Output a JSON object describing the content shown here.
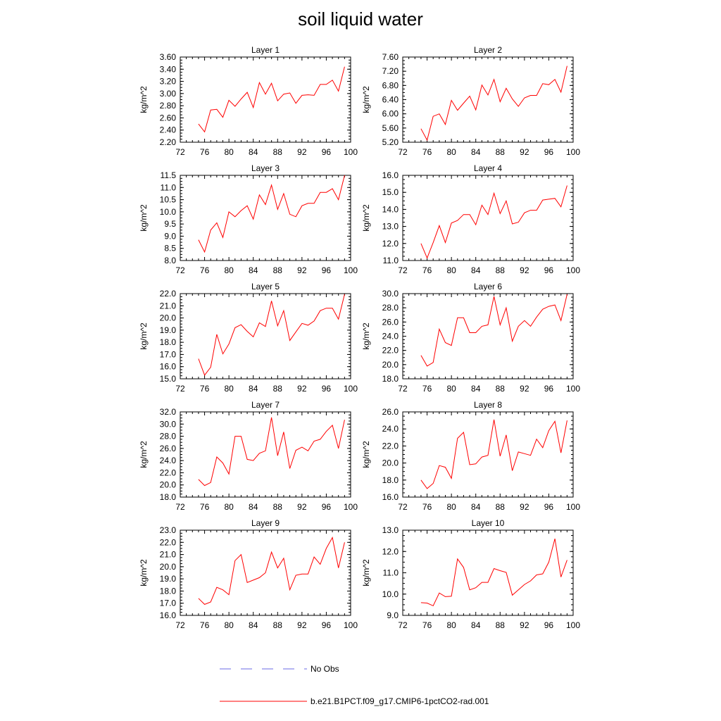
{
  "title": "soil liquid water",
  "colors": {
    "model": "#ff0000",
    "obs": "#6a6ae6",
    "axis": "#000000"
  },
  "legend": {
    "obs_label": "No Obs",
    "model_label": "b.e21.B1PCT.f09_g17.CMIP6-1pctCO2-rad.001"
  },
  "chart_data": [
    {
      "type": "line",
      "title": "Layer 1",
      "ylabel": "kg/m^2",
      "xlim": [
        72,
        100
      ],
      "xticks": [
        "72",
        "76",
        "80",
        "84",
        "88",
        "92",
        "96",
        "100"
      ],
      "ylim": [
        2.2,
        3.6
      ],
      "yticks": [
        "2.20",
        "2.40",
        "2.60",
        "2.80",
        "3.00",
        "3.20",
        "3.40",
        "3.60"
      ],
      "x": [
        75,
        76,
        77,
        78,
        79,
        80,
        81,
        82,
        83,
        84,
        85,
        86,
        87,
        88,
        89,
        90,
        91,
        92,
        93,
        94,
        95,
        96,
        97,
        98,
        99
      ],
      "series": [
        {
          "name": "b.e21.B1PCT.f09_g17.CMIP6-1pctCO2-rad.001",
          "values": [
            2.5,
            2.37,
            2.73,
            2.74,
            2.61,
            2.89,
            2.79,
            2.91,
            3.02,
            2.77,
            3.18,
            2.99,
            3.17,
            2.88,
            2.99,
            3.01,
            2.84,
            2.97,
            2.98,
            2.97,
            3.15,
            3.15,
            3.22,
            3.04,
            3.44
          ]
        }
      ]
    },
    {
      "type": "line",
      "title": "Layer 2",
      "ylabel": "kg/m^2",
      "xlim": [
        72,
        100
      ],
      "xticks": [
        "72",
        "76",
        "80",
        "84",
        "88",
        "92",
        "96",
        "100"
      ],
      "ylim": [
        5.2,
        7.6
      ],
      "yticks": [
        "5.20",
        "5.60",
        "6.00",
        "6.40",
        "6.80",
        "7.20",
        "7.60"
      ],
      "x": [
        75,
        76,
        77,
        78,
        79,
        80,
        81,
        82,
        83,
        84,
        85,
        86,
        87,
        88,
        89,
        90,
        91,
        92,
        93,
        94,
        95,
        96,
        97,
        98,
        99
      ],
      "series": [
        {
          "name": "b.e21.B1PCT.f09_g17.CMIP6-1pctCO2-rad.001",
          "values": [
            5.58,
            5.26,
            5.93,
            6.0,
            5.7,
            6.38,
            6.1,
            6.3,
            6.5,
            6.11,
            6.81,
            6.53,
            6.97,
            6.34,
            6.72,
            6.42,
            6.21,
            6.45,
            6.52,
            6.52,
            6.85,
            6.82,
            6.97,
            6.61,
            7.35
          ]
        }
      ]
    },
    {
      "type": "line",
      "title": "Layer 3",
      "ylabel": "kg/m^2",
      "xlim": [
        72,
        100
      ],
      "xticks": [
        "72",
        "76",
        "80",
        "84",
        "88",
        "92",
        "96",
        "100"
      ],
      "ylim": [
        8.0,
        11.5
      ],
      "yticks": [
        "8.0",
        "8.5",
        "9.0",
        "9.5",
        "10.0",
        "10.5",
        "11.0",
        "11.5"
      ],
      "x": [
        75,
        76,
        77,
        78,
        79,
        80,
        81,
        82,
        83,
        84,
        85,
        86,
        87,
        88,
        89,
        90,
        91,
        92,
        93,
        94,
        95,
        96,
        97,
        98,
        99
      ],
      "series": [
        {
          "name": "b.e21.B1PCT.f09_g17.CMIP6-1pctCO2-rad.001",
          "values": [
            8.85,
            8.35,
            9.25,
            9.55,
            8.95,
            10.0,
            9.8,
            10.05,
            10.25,
            9.7,
            10.7,
            10.3,
            11.1,
            10.1,
            10.75,
            9.9,
            9.8,
            10.25,
            10.35,
            10.35,
            10.8,
            10.8,
            10.95,
            10.5,
            11.5
          ]
        }
      ]
    },
    {
      "type": "line",
      "title": "Layer 4",
      "ylabel": "kg/m^2",
      "xlim": [
        72,
        100
      ],
      "xticks": [
        "72",
        "76",
        "80",
        "84",
        "88",
        "92",
        "96",
        "100"
      ],
      "ylim": [
        11.0,
        16.0
      ],
      "yticks": [
        "11.0",
        "12.0",
        "13.0",
        "14.0",
        "15.0",
        "16.0"
      ],
      "x": [
        75,
        76,
        77,
        78,
        79,
        80,
        81,
        82,
        83,
        84,
        85,
        86,
        87,
        88,
        89,
        90,
        91,
        92,
        93,
        94,
        95,
        96,
        97,
        98,
        99
      ],
      "series": [
        {
          "name": "b.e21.B1PCT.f09_g17.CMIP6-1pctCO2-rad.001",
          "values": [
            12.0,
            11.15,
            12.05,
            13.05,
            12.05,
            13.2,
            13.35,
            13.7,
            13.7,
            13.1,
            14.25,
            13.7,
            14.95,
            13.75,
            14.5,
            13.15,
            13.25,
            13.8,
            13.95,
            13.95,
            14.55,
            14.6,
            14.65,
            14.15,
            15.4
          ]
        }
      ]
    },
    {
      "type": "line",
      "title": "Layer 5",
      "ylabel": "kg/m^2",
      "xlim": [
        72,
        100
      ],
      "xticks": [
        "72",
        "76",
        "80",
        "84",
        "88",
        "92",
        "96",
        "100"
      ],
      "ylim": [
        15.0,
        22.0
      ],
      "yticks": [
        "15.0",
        "16.0",
        "17.0",
        "18.0",
        "19.0",
        "20.0",
        "21.0",
        "22.0"
      ],
      "x": [
        75,
        76,
        77,
        78,
        79,
        80,
        81,
        82,
        83,
        84,
        85,
        86,
        87,
        88,
        89,
        90,
        91,
        92,
        93,
        94,
        95,
        96,
        97,
        98,
        99
      ],
      "series": [
        {
          "name": "b.e21.B1PCT.f09_g17.CMIP6-1pctCO2-rad.001",
          "values": [
            16.65,
            15.3,
            15.95,
            18.65,
            17.05,
            17.85,
            19.2,
            19.45,
            18.9,
            18.45,
            19.6,
            19.3,
            21.4,
            19.35,
            20.6,
            18.15,
            18.85,
            19.55,
            19.4,
            19.75,
            20.6,
            20.8,
            20.8,
            19.9,
            21.95
          ]
        }
      ]
    },
    {
      "type": "line",
      "title": "Layer 6",
      "ylabel": "kg/m^2",
      "xlim": [
        72,
        100
      ],
      "xticks": [
        "72",
        "76",
        "80",
        "84",
        "88",
        "92",
        "96",
        "100"
      ],
      "ylim": [
        18.0,
        30.0
      ],
      "yticks": [
        "18.0",
        "20.0",
        "22.0",
        "24.0",
        "26.0",
        "28.0",
        "30.0"
      ],
      "x": [
        75,
        76,
        77,
        78,
        79,
        80,
        81,
        82,
        83,
        84,
        85,
        86,
        87,
        88,
        89,
        90,
        91,
        92,
        93,
        94,
        95,
        96,
        97,
        98,
        99
      ],
      "series": [
        {
          "name": "b.e21.B1PCT.f09_g17.CMIP6-1pctCO2-rad.001",
          "values": [
            21.3,
            19.8,
            20.3,
            25.0,
            23.1,
            22.7,
            26.6,
            26.6,
            24.5,
            24.5,
            25.4,
            25.6,
            29.6,
            25.6,
            28.0,
            23.3,
            25.4,
            26.2,
            25.4,
            26.7,
            27.8,
            28.2,
            28.4,
            26.2,
            29.9
          ]
        }
      ]
    },
    {
      "type": "line",
      "title": "Layer 7",
      "ylabel": "kg/m^2",
      "xlim": [
        72,
        100
      ],
      "xticks": [
        "72",
        "76",
        "80",
        "84",
        "88",
        "92",
        "96",
        "100"
      ],
      "ylim": [
        18.0,
        32.0
      ],
      "yticks": [
        "18.0",
        "20.0",
        "22.0",
        "24.0",
        "26.0",
        "28.0",
        "30.0",
        "32.0"
      ],
      "x": [
        75,
        76,
        77,
        78,
        79,
        80,
        81,
        82,
        83,
        84,
        85,
        86,
        87,
        88,
        89,
        90,
        91,
        92,
        93,
        94,
        95,
        96,
        97,
        98,
        99
      ],
      "series": [
        {
          "name": "b.e21.B1PCT.f09_g17.CMIP6-1pctCO2-rad.001",
          "values": [
            20.9,
            19.9,
            20.4,
            24.6,
            23.6,
            21.8,
            28.0,
            28.0,
            24.2,
            24.0,
            25.2,
            25.6,
            31.1,
            24.8,
            28.7,
            22.7,
            25.7,
            26.2,
            25.6,
            27.2,
            27.5,
            28.8,
            29.8,
            26.0,
            30.7
          ]
        }
      ]
    },
    {
      "type": "line",
      "title": "Layer 8",
      "ylabel": "kg/m^2",
      "xlim": [
        72,
        100
      ],
      "xticks": [
        "72",
        "76",
        "80",
        "84",
        "88",
        "92",
        "96",
        "100"
      ],
      "ylim": [
        16.0,
        26.0
      ],
      "yticks": [
        "16.0",
        "18.0",
        "20.0",
        "22.0",
        "24.0",
        "26.0"
      ],
      "x": [
        75,
        76,
        77,
        78,
        79,
        80,
        81,
        82,
        83,
        84,
        85,
        86,
        87,
        88,
        89,
        90,
        91,
        92,
        93,
        94,
        95,
        96,
        97,
        98,
        99
      ],
      "series": [
        {
          "name": "b.e21.B1PCT.f09_g17.CMIP6-1pctCO2-rad.001",
          "values": [
            18.0,
            17.0,
            17.6,
            19.7,
            19.5,
            18.2,
            22.9,
            23.6,
            19.8,
            19.9,
            20.7,
            20.9,
            25.1,
            20.8,
            23.3,
            19.1,
            21.3,
            21.1,
            20.9,
            22.8,
            21.8,
            23.8,
            24.9,
            21.2,
            25.0
          ]
        }
      ]
    },
    {
      "type": "line",
      "title": "Layer 9",
      "ylabel": "kg/m^2",
      "xlim": [
        72,
        100
      ],
      "xticks": [
        "72",
        "76",
        "80",
        "84",
        "88",
        "92",
        "96",
        "100"
      ],
      "ylim": [
        16.0,
        23.0
      ],
      "yticks": [
        "16.0",
        "17.0",
        "18.0",
        "19.0",
        "20.0",
        "21.0",
        "22.0",
        "23.0"
      ],
      "x": [
        75,
        76,
        77,
        78,
        79,
        80,
        81,
        82,
        83,
        84,
        85,
        86,
        87,
        88,
        89,
        90,
        91,
        92,
        93,
        94,
        95,
        96,
        97,
        98,
        99
      ],
      "series": [
        {
          "name": "b.e21.B1PCT.f09_g17.CMIP6-1pctCO2-rad.001",
          "values": [
            17.4,
            16.9,
            17.1,
            18.3,
            18.1,
            17.7,
            20.5,
            21.0,
            18.7,
            18.9,
            19.1,
            19.5,
            21.2,
            19.9,
            20.7,
            18.1,
            19.3,
            19.4,
            19.4,
            20.8,
            20.2,
            21.5,
            22.4,
            19.9,
            22.0
          ]
        }
      ]
    },
    {
      "type": "line",
      "title": "Layer 10",
      "ylabel": "kg/m^2",
      "xlim": [
        72,
        100
      ],
      "xticks": [
        "72",
        "76",
        "80",
        "84",
        "88",
        "92",
        "96",
        "100"
      ],
      "ylim": [
        9.0,
        13.0
      ],
      "yticks": [
        "9.0",
        "10.0",
        "11.0",
        "12.0",
        "13.0"
      ],
      "x": [
        75,
        76,
        77,
        78,
        79,
        80,
        81,
        82,
        83,
        84,
        85,
        86,
        87,
        88,
        89,
        90,
        91,
        92,
        93,
        94,
        95,
        96,
        97,
        98,
        99
      ],
      "series": [
        {
          "name": "b.e21.B1PCT.f09_g17.CMIP6-1pctCO2-rad.001",
          "values": [
            9.6,
            9.58,
            9.45,
            10.05,
            9.88,
            9.9,
            11.65,
            11.25,
            10.2,
            10.3,
            10.55,
            10.55,
            11.2,
            11.1,
            11.02,
            9.95,
            10.2,
            10.45,
            10.62,
            10.9,
            10.95,
            11.5,
            12.6,
            10.8,
            11.6
          ]
        }
      ]
    }
  ]
}
